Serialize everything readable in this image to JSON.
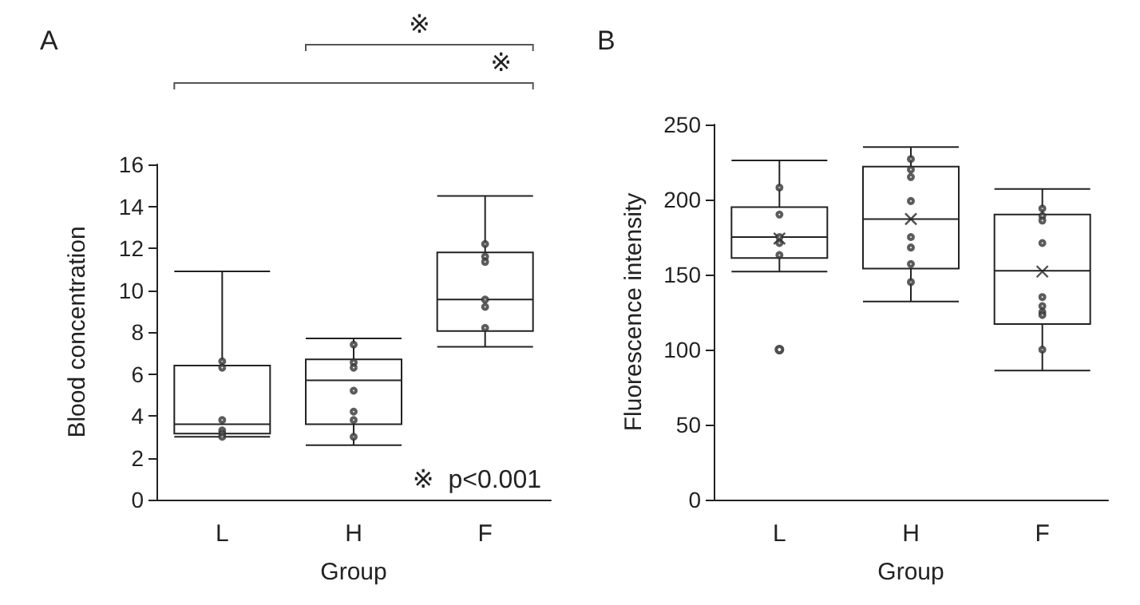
{
  "chart_data": [
    {
      "type": "box",
      "title": "A",
      "xlabel": "Group",
      "ylabel": "Blood concentration",
      "categories": [
        "L",
        "H",
        "F"
      ],
      "ylim": [
        0,
        16
      ],
      "yticks": [
        0,
        2,
        4,
        6,
        8,
        10,
        12,
        14,
        16
      ],
      "grid": false,
      "boxes": [
        {
          "low": 3.0,
          "q1": 3.15,
          "median": 3.6,
          "q3": 6.4,
          "high": 10.9
        },
        {
          "low": 2.6,
          "q1": 3.6,
          "median": 5.7,
          "q3": 6.7,
          "high": 7.7
        },
        {
          "low": 7.3,
          "q1": 8.05,
          "median": 9.55,
          "q3": 11.8,
          "high": 14.5
        }
      ],
      "series": [
        {
          "type": "scatter",
          "color": "#333333",
          "marker": "circle",
          "x": [
            "L",
            "L",
            "L",
            "L",
            "L",
            "L",
            "H",
            "H",
            "H",
            "H",
            "H",
            "H",
            "H",
            "F",
            "F",
            "F",
            "F",
            "F",
            "F"
          ],
          "values": [
            6.6,
            6.3,
            3.8,
            3.3,
            3.15,
            3.0,
            7.4,
            6.55,
            6.3,
            5.2,
            4.2,
            3.8,
            3.0,
            12.2,
            11.6,
            11.35,
            9.55,
            9.2,
            8.2
          ]
        }
      ],
      "annotations": [
        "※",
        "※",
        "※  p<0.001"
      ]
    },
    {
      "type": "box",
      "title": "B",
      "xlabel": "Group",
      "ylabel": "Fluorescence intensity",
      "categories": [
        "L",
        "H",
        "F"
      ],
      "ylim": [
        0,
        250
      ],
      "yticks": [
        0,
        50,
        100,
        150,
        200,
        250
      ],
      "grid": false,
      "boxes": [
        {
          "low": 152,
          "q1": 161,
          "median": 175,
          "q3": 195,
          "high": 226,
          "mean": 174,
          "outliers": [
            100
          ]
        },
        {
          "low": 132,
          "q1": 154,
          "median": 187,
          "q3": 222,
          "high": 235,
          "mean": 187
        },
        {
          "low": 86,
          "q1": 117,
          "median": 152.5,
          "q3": 190,
          "high": 207,
          "mean": 152
        }
      ],
      "series": [
        {
          "type": "scatter",
          "color": "#333333",
          "marker": "circle",
          "x": [
            "L",
            "L",
            "L",
            "L",
            "L",
            "H",
            "H",
            "H",
            "H",
            "H",
            "H",
            "H",
            "H",
            "F",
            "F",
            "F",
            "F",
            "F",
            "F",
            "F",
            "F",
            "F"
          ],
          "values": [
            208,
            190,
            175,
            171,
            163,
            227,
            220,
            215,
            199,
            175,
            168,
            157,
            145,
            194,
            189,
            186,
            171,
            135,
            129,
            125,
            123,
            100
          ]
        }
      ]
    }
  ]
}
